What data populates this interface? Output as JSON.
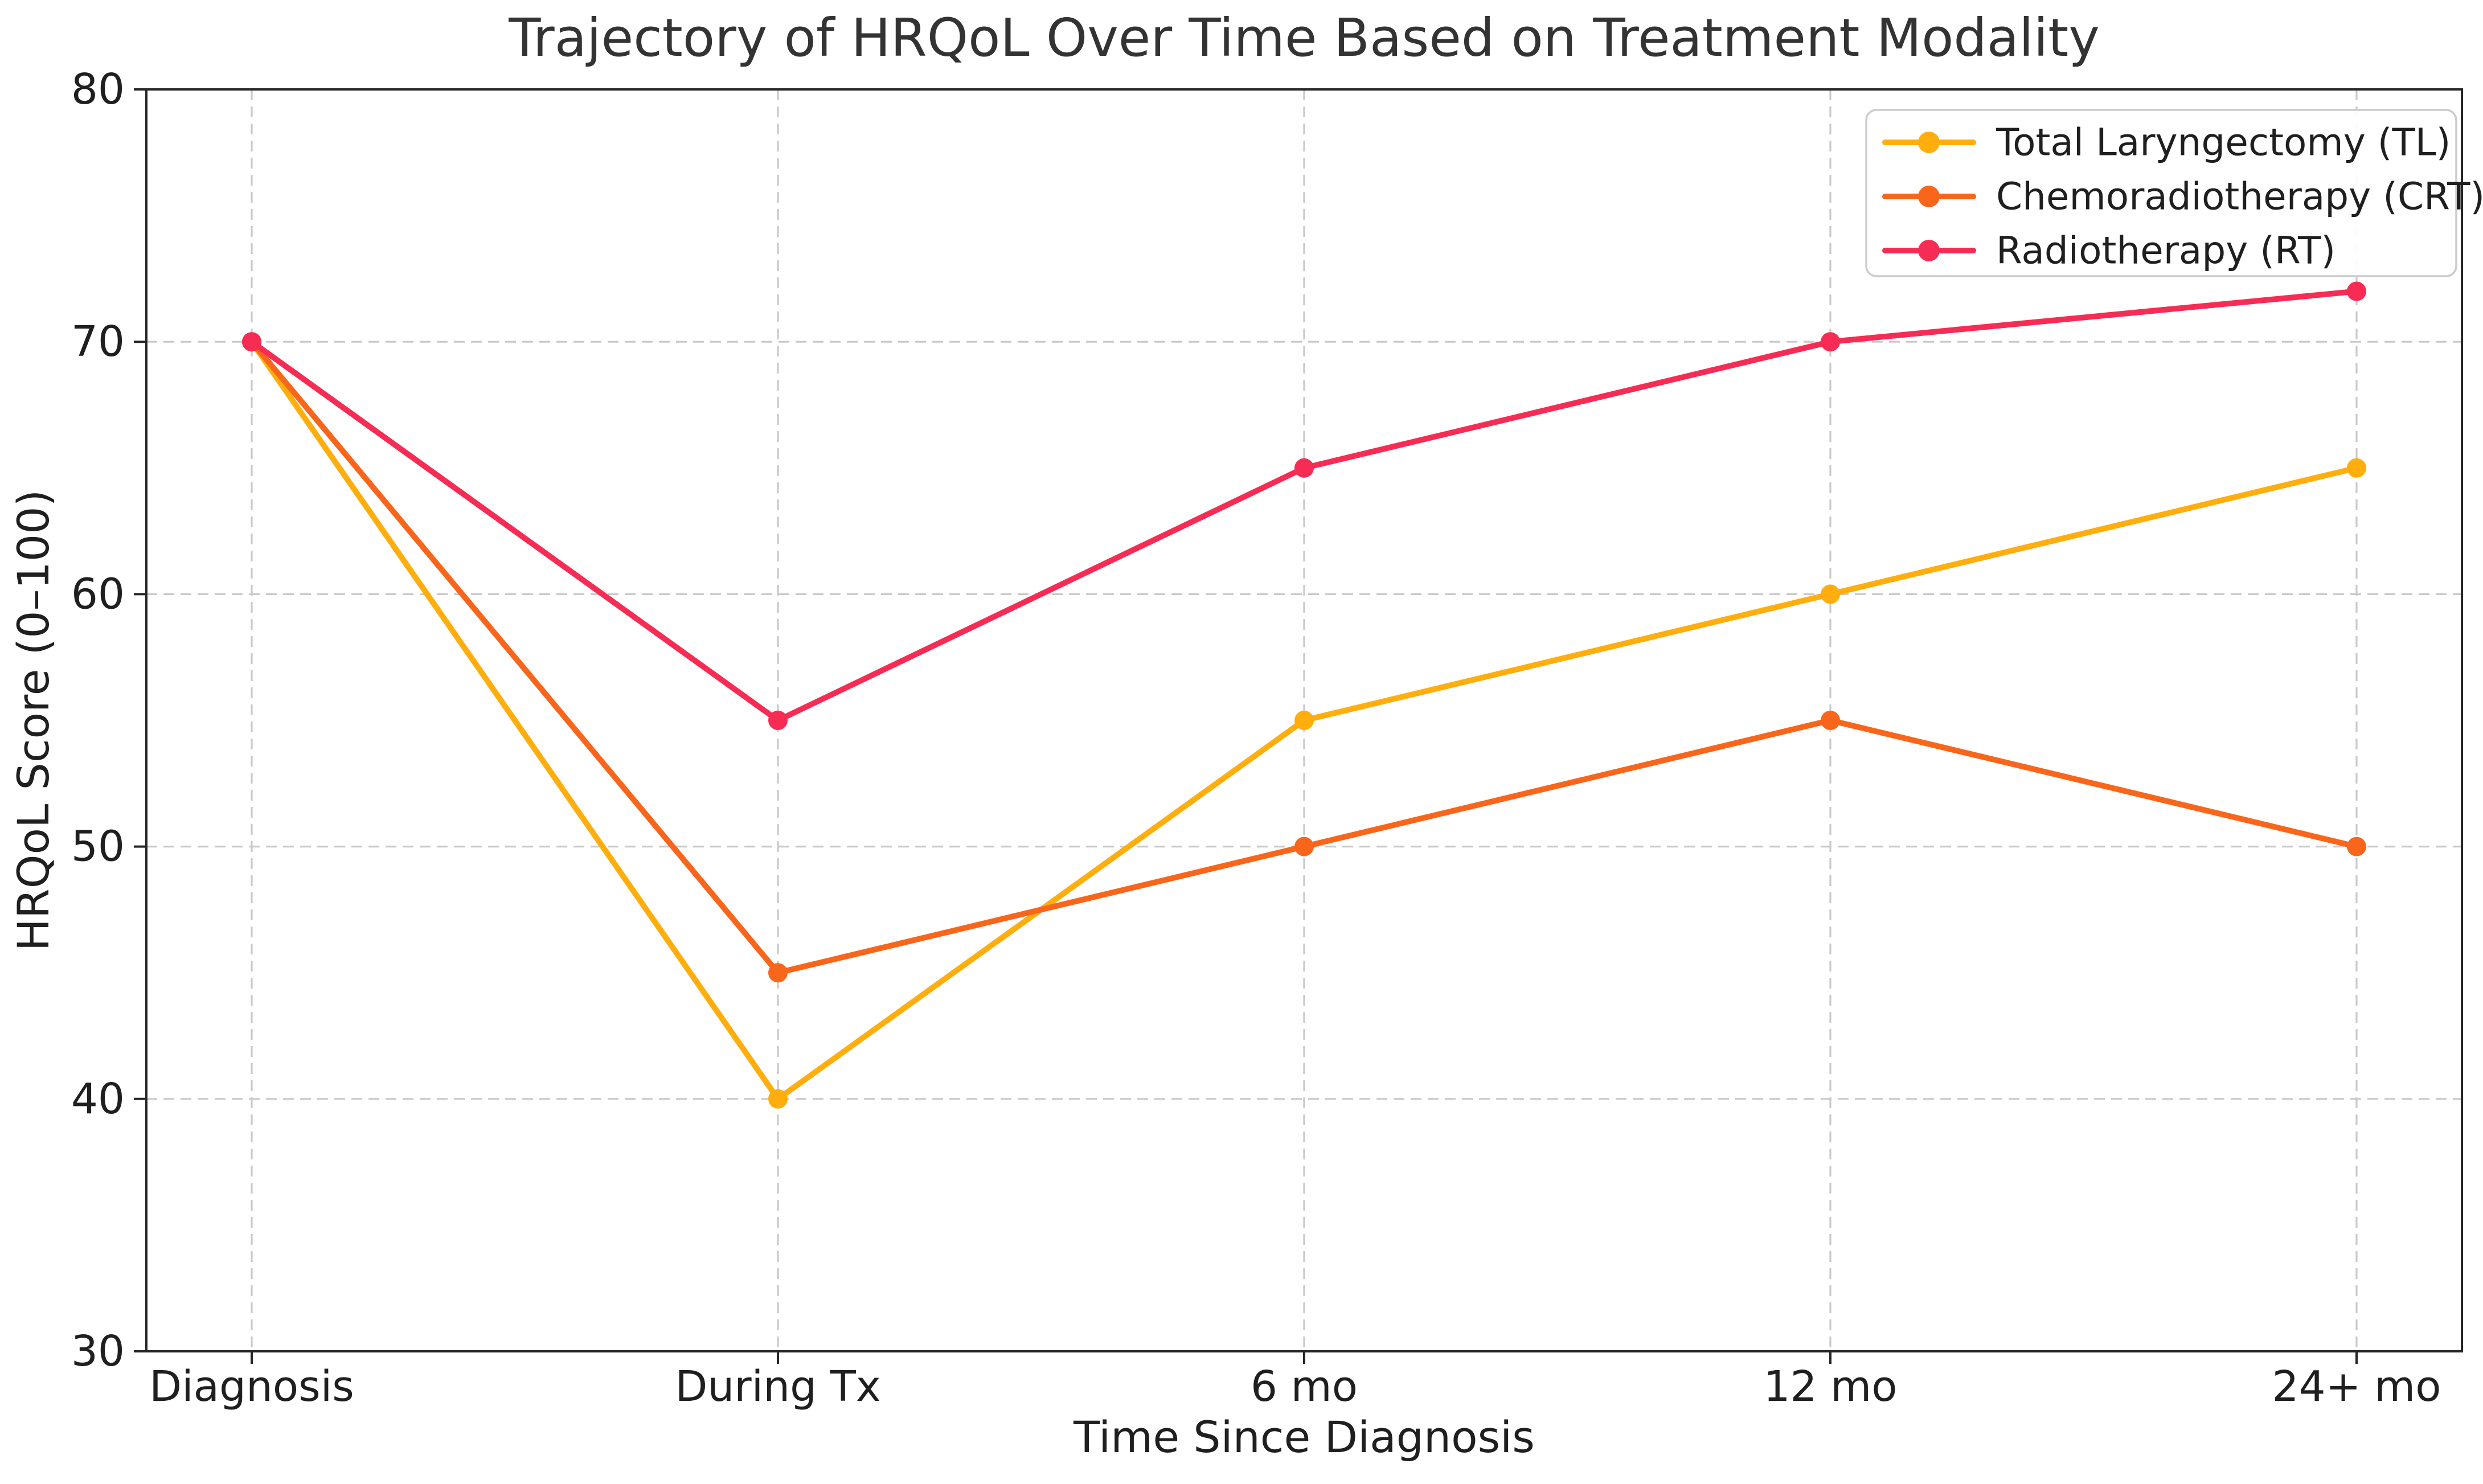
{
  "figure": {
    "background": "#ffffff",
    "title_color": "#333333",
    "axis_text_color": "#1f1f1f",
    "spine_color": "#262626",
    "grid_color": "#c9c9c9",
    "legend_border_color": "#cccccc",
    "legend_background": "#ffffff"
  },
  "chart_data": {
    "type": "line",
    "title": "Trajectory of HRQoL Over Time Based on Treatment Modality",
    "xlabel": "Time Since Diagnosis",
    "ylabel": "HRQoL Score (0–100)",
    "categories": [
      "Diagnosis",
      "During Tx",
      "6 mo",
      "12 mo",
      "24+ mo"
    ],
    "ylim": [
      30,
      80
    ],
    "yticks": [
      30,
      40,
      50,
      60,
      70,
      80
    ],
    "grid": "dashed-both-axes",
    "legend_position": "upper-right",
    "series": [
      {
        "name": "Total Laryngectomy (TL)",
        "color": "#FFAE0D",
        "values": [
          70,
          40,
          55,
          60,
          65
        ]
      },
      {
        "name": "Chemoradiotherapy (CRT)",
        "color": "#F9661B",
        "values": [
          70,
          45,
          50,
          55,
          50
        ]
      },
      {
        "name": "Radiotherapy (RT)",
        "color": "#F72C55",
        "values": [
          70,
          55,
          65,
          70,
          72
        ]
      }
    ]
  }
}
